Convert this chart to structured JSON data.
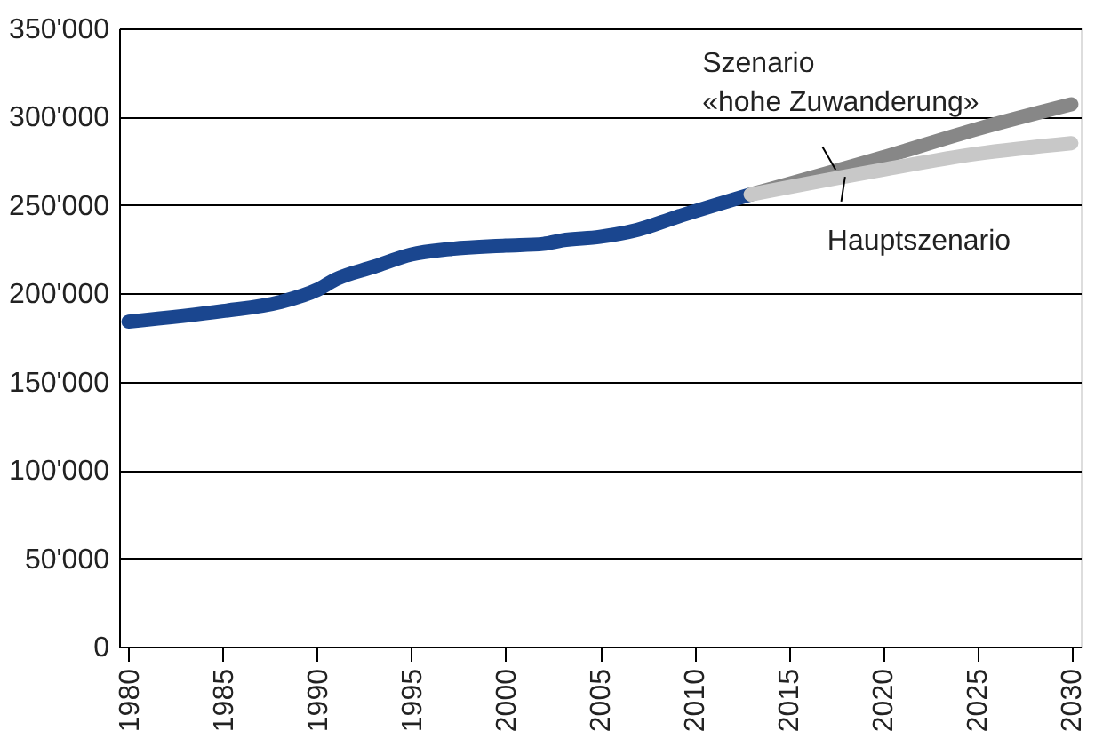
{
  "chart_data": {
    "type": "line",
    "series": [
      {
        "color": "#1a468f",
        "x": [
          1980,
          1985,
          1988,
          1990,
          1991,
          1993,
          1995,
          1997,
          2000,
          2002,
          2003,
          2005,
          2007,
          2009,
          2013
        ],
        "values": [
          184000,
          190000,
          195000,
          202000,
          208000,
          215000,
          222000,
          225000,
          227000,
          228000,
          230000,
          232000,
          236000,
          243000,
          256000
        ]
      },
      {
        "color": "#878787",
        "x": [
          2013,
          2020,
          2025,
          2030
        ],
        "values": [
          256000,
          277000,
          293000,
          307000
        ]
      },
      {
        "color": "#c8c8c8",
        "x": [
          2013,
          2020,
          2025,
          2030
        ],
        "values": [
          256000,
          270000,
          279000,
          285000
        ]
      }
    ],
    "annotations": [
      {
        "text": "Szenario\n«hohe Zuwanderung»",
        "x": 2017.5,
        "y": 270000
      },
      {
        "text": "Hauptszenario",
        "x": 2018,
        "y": 266000
      }
    ],
    "xlim": [
      1979.5,
      2030.5
    ],
    "xticks": [
      1980,
      1985,
      1990,
      1995,
      2000,
      2005,
      2010,
      2015,
      2020,
      2025,
      2030
    ],
    "ylim": [
      0,
      350000
    ],
    "yticks": [
      0,
      {
        "value": 50000,
        "label": "50'000"
      },
      {
        "value": 100000,
        "label": "100'000"
      },
      {
        "value": 150000,
        "label": "150'000"
      },
      {
        "value": 200000,
        "label": "200'000"
      },
      {
        "value": 250000,
        "label": "250'000"
      },
      {
        "value": 300000,
        "label": "300'000"
      },
      {
        "value": 350000,
        "label": "350'000"
      }
    ],
    "grid": "y",
    "line_style": "solid"
  }
}
